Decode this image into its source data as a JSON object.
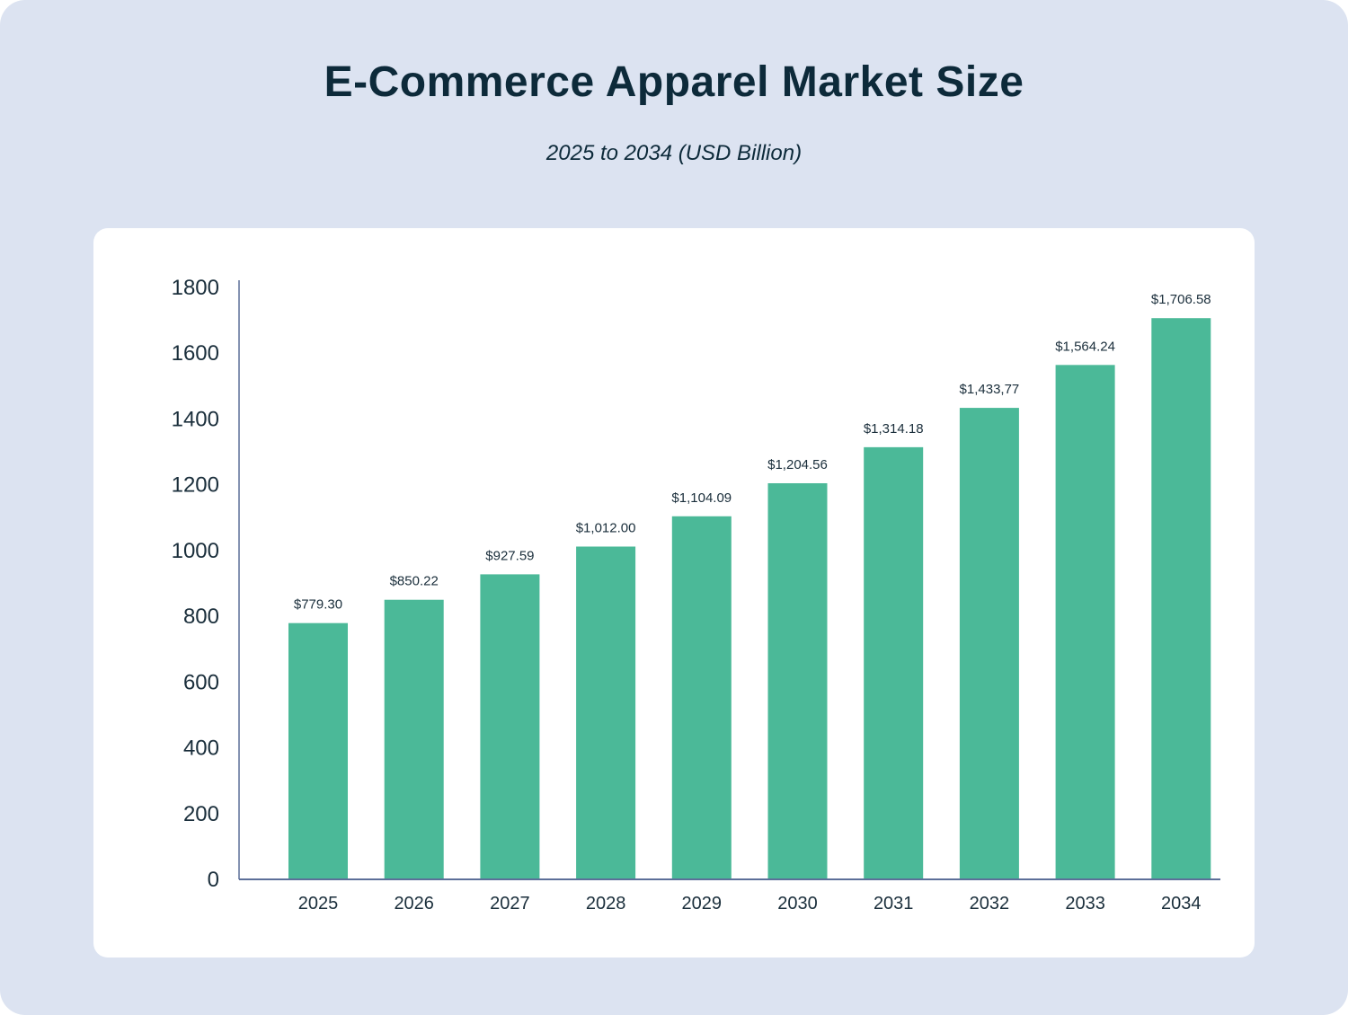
{
  "title": "E-Commerce Apparel Market Size",
  "subtitle": "2025 to 2034 (USD Billion)",
  "colors": {
    "background": "#dce3f1",
    "bar": "#4bb998",
    "axis": "#5c6f99",
    "text": "#0d2a3a"
  },
  "chart_data": {
    "type": "bar",
    "categories": [
      "2025",
      "2026",
      "2027",
      "2028",
      "2029",
      "2030",
      "2031",
      "2032",
      "2033",
      "2034"
    ],
    "values": [
      779.3,
      850.22,
      927.59,
      1012.0,
      1104.09,
      1204.56,
      1314.18,
      1433.77,
      1564.24,
      1706.58
    ],
    "data_labels": [
      "$779.30",
      "$850.22",
      "$927.59",
      "$1,012.00",
      "$1,104.09",
      "$1,204.56",
      "$1,314.18",
      "$1,433,77",
      "$1,564.24",
      "$1,706.58"
    ],
    "yticks": [
      "0",
      "200",
      "400",
      "600",
      "800",
      "1000",
      "1200",
      "1400",
      "1600",
      "1800"
    ],
    "ylim": [
      0,
      1800
    ],
    "grid": false,
    "legend": "none"
  }
}
